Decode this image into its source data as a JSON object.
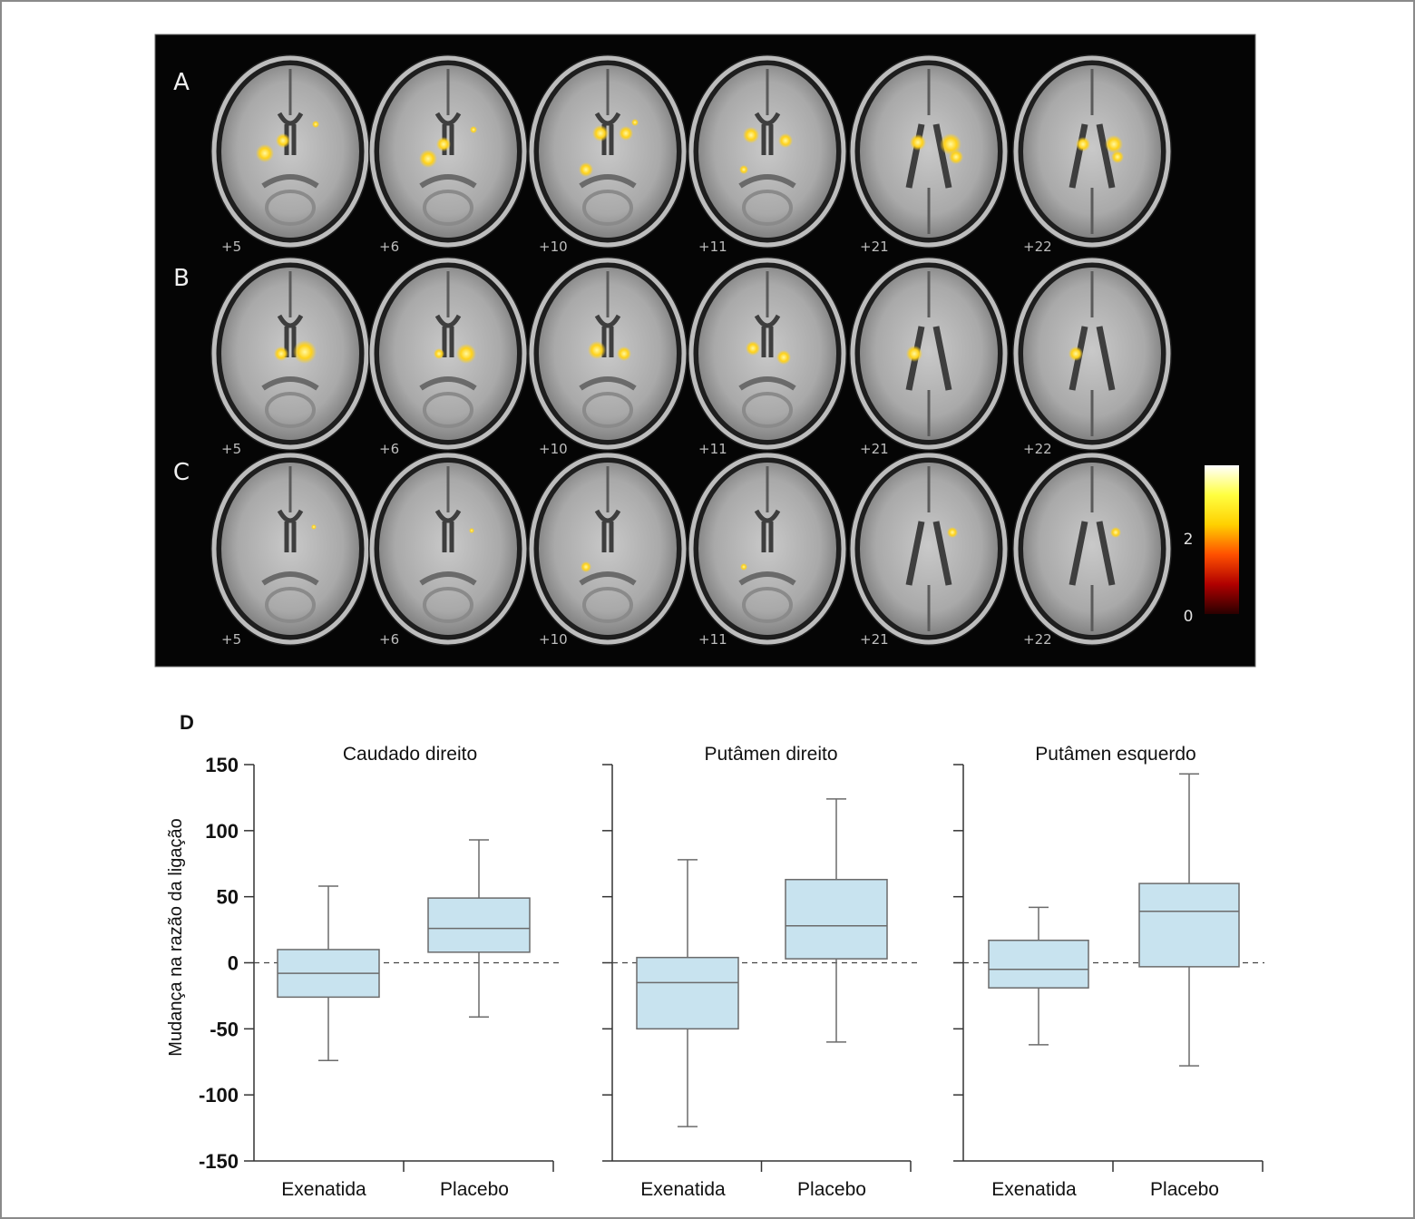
{
  "brain_panel": {
    "row_labels": [
      "A",
      "B",
      "C"
    ],
    "slice_labels": [
      "+5",
      "+6",
      "+10",
      "+11",
      "+21",
      "+22"
    ],
    "colorbar": {
      "ticks": [
        "2",
        "0"
      ],
      "colors": [
        "#2a0000",
        "#b00000",
        "#ff5000",
        "#ffd000",
        "#ffff40",
        "#ffffff"
      ]
    },
    "blob_color": "#ffd21a"
  },
  "chart_data": {
    "type": "boxplot",
    "panel_label": "D",
    "ylabel": "Mudança na razão da ligação",
    "ylim": [
      -150,
      150
    ],
    "yticks": [
      "150",
      "100",
      "50",
      "0",
      "-50",
      "-100",
      "-150"
    ],
    "reference_line": 0,
    "box_color": "#c8e3ef",
    "categories": [
      "Exenatida",
      "Placebo"
    ],
    "panels": [
      {
        "title": "Caudado direito",
        "boxes": [
          {
            "category": "Exenatida",
            "min": -74,
            "q1": -26,
            "median": -8,
            "q3": 10,
            "max": 58
          },
          {
            "category": "Placebo",
            "min": -41,
            "q1": 8,
            "median": 26,
            "q3": 49,
            "max": 93
          }
        ]
      },
      {
        "title": "Putâmen direito",
        "boxes": [
          {
            "category": "Exenatida",
            "min": -124,
            "q1": -50,
            "median": -15,
            "q3": 4,
            "max": 78
          },
          {
            "category": "Placebo",
            "min": -60,
            "q1": 3,
            "median": 28,
            "q3": 63,
            "max": 124
          }
        ]
      },
      {
        "title": "Putâmen esquerdo",
        "boxes": [
          {
            "category": "Exenatida",
            "min": -62,
            "q1": -19,
            "median": -5,
            "q3": 17,
            "max": 42
          },
          {
            "category": "Placebo",
            "min": -78,
            "q1": -3,
            "median": 39,
            "q3": 60,
            "max": 143
          }
        ]
      }
    ]
  }
}
